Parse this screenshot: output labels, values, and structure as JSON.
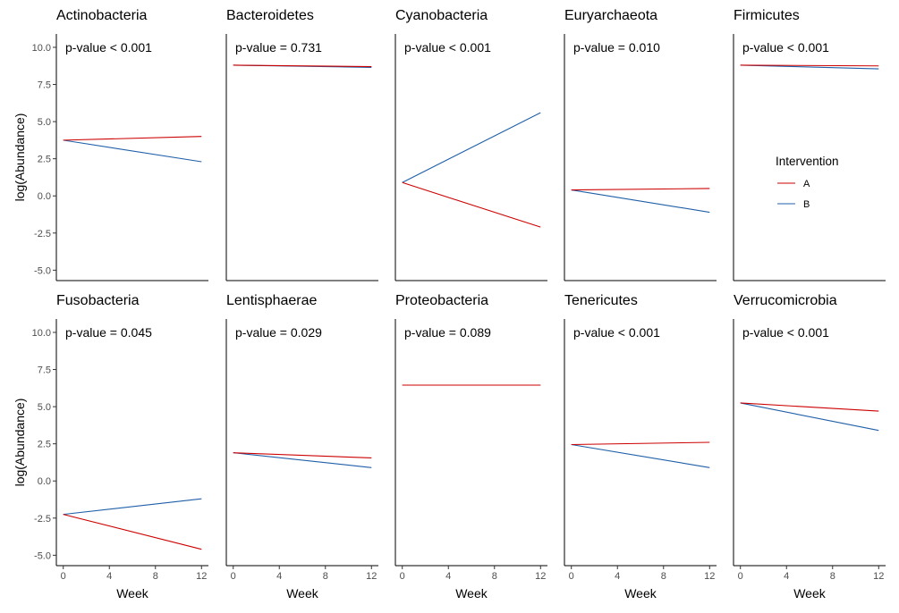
{
  "chart_data": {
    "type": "line",
    "layout": "faceted 2 rows x 5 columns",
    "xlabel": "Week",
    "ylabel": "log(Abundance)",
    "xlim": [
      -0.6,
      12.6
    ],
    "ylim": [
      -5.7,
      10.9
    ],
    "x_ticks": [
      0,
      4,
      8,
      12
    ],
    "y_ticks": [
      -5.0,
      -2.5,
      0.0,
      2.5,
      5.0,
      7.5,
      10.0
    ],
    "y_tick_labels": [
      "-5.0",
      "-2.5",
      "0.0",
      "2.5",
      "5.0",
      "7.5",
      "10.0"
    ],
    "grid": false,
    "legend": {
      "title": "Intervention",
      "position": "right",
      "entries": [
        {
          "name": "A",
          "color": "#cc0000"
        },
        {
          "name": "B",
          "color": "#1f5fa8"
        }
      ]
    },
    "facets": [
      {
        "title": "Actinobacteria",
        "pvalue_label": "p-value < 0.001",
        "series": [
          {
            "name": "A",
            "x": [
              0,
              12
            ],
            "y": [
              3.75,
              4.0
            ]
          },
          {
            "name": "B",
            "x": [
              0,
              12
            ],
            "y": [
              3.75,
              2.3
            ]
          }
        ]
      },
      {
        "title": "Bacteroidetes",
        "pvalue_label": "p-value = 0.731",
        "series": [
          {
            "name": "A",
            "x": [
              0,
              12
            ],
            "y": [
              8.8,
              8.7
            ]
          },
          {
            "name": "B",
            "x": [
              0,
              12
            ],
            "y": [
              8.8,
              8.65
            ]
          }
        ]
      },
      {
        "title": "Cyanobacteria",
        "pvalue_label": "p-value < 0.001",
        "series": [
          {
            "name": "A",
            "x": [
              0,
              12
            ],
            "y": [
              0.9,
              -2.1
            ]
          },
          {
            "name": "B",
            "x": [
              0,
              12
            ],
            "y": [
              0.9,
              5.6
            ]
          }
        ]
      },
      {
        "title": "Euryarchaeota",
        "pvalue_label": "p-value = 0.010",
        "series": [
          {
            "name": "A",
            "x": [
              0,
              12
            ],
            "y": [
              0.4,
              0.5
            ]
          },
          {
            "name": "B",
            "x": [
              0,
              12
            ],
            "y": [
              0.4,
              -1.1
            ]
          }
        ]
      },
      {
        "title": "Firmicutes",
        "pvalue_label": "p-value < 0.001",
        "series": [
          {
            "name": "A",
            "x": [
              0,
              12
            ],
            "y": [
              8.8,
              8.75
            ]
          },
          {
            "name": "B",
            "x": [
              0,
              12
            ],
            "y": [
              8.8,
              8.55
            ]
          }
        ]
      },
      {
        "title": "Fusobacteria",
        "pvalue_label": "p-value = 0.045",
        "series": [
          {
            "name": "A",
            "x": [
              0,
              12
            ],
            "y": [
              -2.25,
              -4.6
            ]
          },
          {
            "name": "B",
            "x": [
              0,
              12
            ],
            "y": [
              -2.25,
              -1.2
            ]
          }
        ]
      },
      {
        "title": "Lentisphaerae",
        "pvalue_label": "p-value = 0.029",
        "series": [
          {
            "name": "A",
            "x": [
              0,
              12
            ],
            "y": [
              1.9,
              1.55
            ]
          },
          {
            "name": "B",
            "x": [
              0,
              12
            ],
            "y": [
              1.9,
              0.9
            ]
          }
        ]
      },
      {
        "title": "Proteobacteria",
        "pvalue_label": "p-value = 0.089",
        "series": [
          {
            "name": "A",
            "x": [
              0,
              12
            ],
            "y": [
              6.45,
              6.45
            ]
          },
          {
            "name": "B",
            "x": [
              0,
              12
            ],
            "y": [
              6.45,
              6.45
            ]
          }
        ]
      },
      {
        "title": "Tenericutes",
        "pvalue_label": "p-value < 0.001",
        "series": [
          {
            "name": "A",
            "x": [
              0,
              12
            ],
            "y": [
              2.45,
              2.6
            ]
          },
          {
            "name": "B",
            "x": [
              0,
              12
            ],
            "y": [
              2.45,
              0.9
            ]
          }
        ]
      },
      {
        "title": "Verrucomicrobia",
        "pvalue_label": "p-value < 0.001",
        "series": [
          {
            "name": "A",
            "x": [
              0,
              12
            ],
            "y": [
              5.25,
              4.7
            ]
          },
          {
            "name": "B",
            "x": [
              0,
              12
            ],
            "y": [
              5.25,
              3.4
            ]
          }
        ]
      }
    ]
  }
}
